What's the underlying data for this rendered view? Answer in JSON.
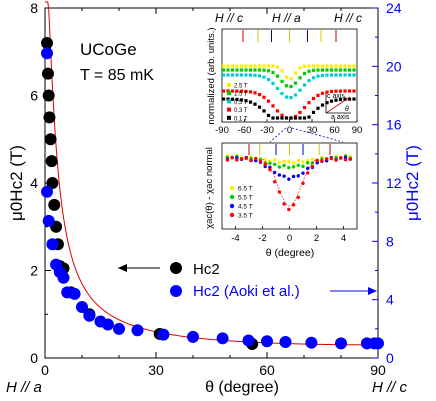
{
  "chart_data": {
    "type": "scatter",
    "sample": "UCoGe",
    "temperature": "T = 85 mK",
    "xlabel": "θ (degree)",
    "ylabel_left": "μ0Hc2 (T)",
    "ylabel_right": "μ0Hc2 (T)",
    "x_end_labels": {
      "left": "H // a",
      "right": "H // c"
    },
    "xlim": [
      0,
      90
    ],
    "ylim_left": [
      0,
      8
    ],
    "ylim_right": [
      0,
      24
    ],
    "x_ticks": [
      "0",
      "30",
      "60",
      "90"
    ],
    "y_left_ticks": [
      "0",
      "2",
      "4",
      "6",
      "8"
    ],
    "y_right_ticks": [
      "0",
      "4",
      "8",
      "12",
      "16",
      "20",
      "24"
    ],
    "series": [
      {
        "name": "Hc2",
        "color": "#000000",
        "axis": "left",
        "x": [
          0.5,
          0.8,
          1.0,
          1.2,
          1.5,
          1.8,
          2.0,
          2.5,
          3.0,
          3.5,
          4.0,
          5.0,
          7.0,
          12.0,
          31.0,
          56.0
        ],
        "y": [
          7.2,
          6.5,
          6.0,
          5.5,
          5.0,
          4.5,
          4.0,
          3.5,
          3.0,
          2.6,
          2.1,
          2.05,
          1.5,
          1.0,
          0.55,
          0.32
        ]
      },
      {
        "name": "Hc2 (Aoki et al.)",
        "color": "#0000ff",
        "axis": "right",
        "x": [
          0.0,
          0.5,
          1.0,
          2.0,
          3.0,
          4.0,
          5.0,
          6.0,
          8.0,
          10.0,
          12.0,
          15.0,
          17.0,
          20.0,
          25.0,
          32.0,
          40.0,
          48.0,
          55.0,
          60.0,
          65.0,
          72.0,
          80.0,
          87.0,
          89.0,
          90.0
        ],
        "y": [
          20.9,
          11.4,
          9.4,
          7.8,
          6.4,
          5.9,
          5.5,
          4.5,
          4.4,
          3.5,
          2.9,
          2.5,
          2.3,
          2.0,
          1.9,
          1.6,
          1.45,
          1.35,
          1.2,
          1.15,
          1.1,
          1.05,
          1.0,
          1.0,
          1.0,
          1.0
        ]
      }
    ],
    "fit_curve": {
      "color": "#dd0000"
    },
    "legend": [
      {
        "label": "Hc2"
      },
      {
        "label": "Hc2 (Aoki et al.)"
      }
    ],
    "inset_top": {
      "ylabel": "normalized (arb. units.)",
      "xlim": [
        -90,
        90
      ],
      "x_ticks": [
        "-90",
        "-60",
        "-30",
        "0",
        "30",
        "60",
        "90"
      ],
      "headers": [
        "H // c",
        "H // a",
        "H // c"
      ],
      "legend": [
        "2.5 T",
        "1.5 T",
        "0.5 T",
        "0.3 T",
        "0.1 T"
      ],
      "legend_colors": [
        "#ffee00",
        "#00cc00",
        "#00cccc",
        "#ff0000",
        "#000000"
      ],
      "axis_labels": [
        "c axis",
        "a axis",
        "θ"
      ]
    },
    "inset_bottom": {
      "ylabel": "χac(θ) - χac normal",
      "xlabel": "θ (degree)",
      "xlim": [
        -5,
        5
      ],
      "x_ticks": [
        "-4",
        "-2",
        "0",
        "2",
        "4"
      ],
      "legend": [
        "6.5 T",
        "5.5 T",
        "4.5 T",
        "3.5 T"
      ],
      "legend_colors": [
        "#ffee00",
        "#00cc00",
        "#0000ff",
        "#ff0000"
      ]
    }
  }
}
